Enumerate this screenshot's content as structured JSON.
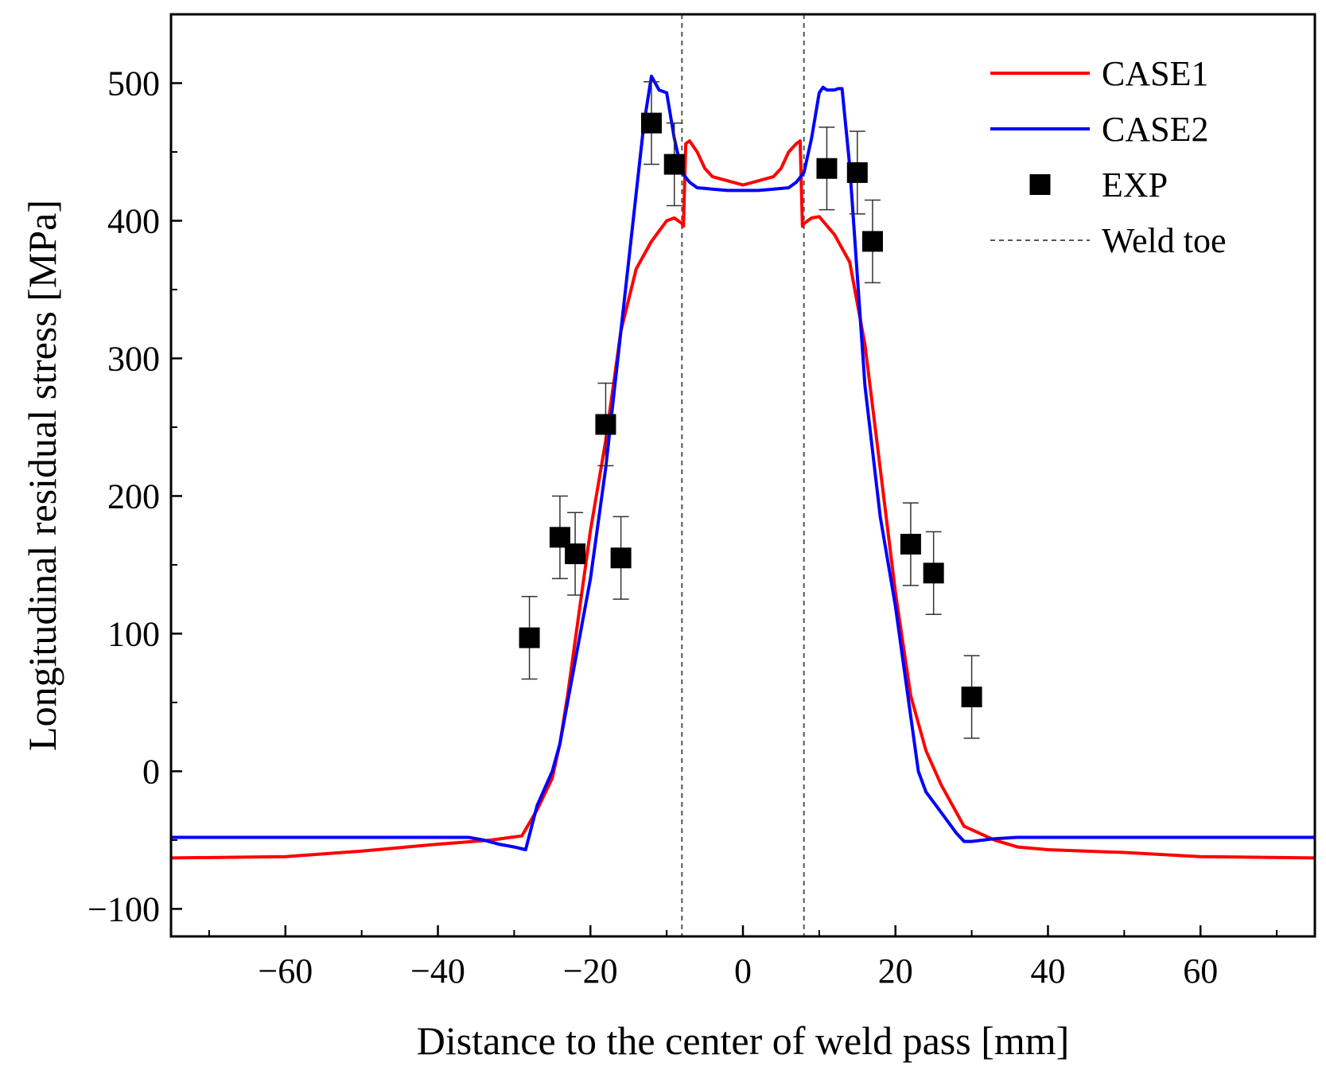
{
  "chart_data": {
    "type": "line",
    "title": "",
    "xlabel": "Distance to the center of weld pass [mm]",
    "ylabel": "Longitudinal residual stress [MPa]",
    "xlim": [
      -75,
      75
    ],
    "ylim": [
      -120,
      550
    ],
    "xticks": [
      -60,
      -40,
      -20,
      0,
      20,
      40,
      60
    ],
    "xtick_labels": [
      "−60",
      "−40",
      "−20",
      "0",
      "20",
      "40",
      "60"
    ],
    "xminor": [
      -70,
      -50,
      -30,
      -10,
      10,
      30,
      50,
      70
    ],
    "yticks": [
      -100,
      0,
      100,
      200,
      300,
      400,
      500
    ],
    "ytick_labels": [
      "−100",
      "0",
      "100",
      "200",
      "300",
      "400",
      "500"
    ],
    "yminor": [
      -50,
      50,
      150,
      250,
      350,
      450
    ],
    "grid": false,
    "legend_position": "top-right",
    "series": [
      {
        "name": "CASE1",
        "kind": "line",
        "color": "#ff0000",
        "x": [
          -75,
          -60,
          -50,
          -40,
          -33,
          -29,
          -27,
          -25,
          -24,
          -23,
          -22,
          -20,
          -18,
          -16,
          -14,
          -12,
          -10,
          -9,
          -8,
          -7.8,
          -7.5,
          -7,
          -6,
          -5,
          -4,
          -2,
          0,
          2,
          4,
          5,
          6,
          7,
          7.5,
          7.8,
          8,
          9,
          10,
          12,
          14,
          16,
          18,
          20,
          22,
          24,
          26,
          29,
          33,
          36,
          40,
          50,
          60,
          75
        ],
        "y": [
          -63,
          -62,
          -58,
          -53,
          -50,
          -47,
          -28,
          -5,
          20,
          55,
          95,
          175,
          240,
          320,
          365,
          385,
          400,
          402,
          398,
          396,
          456,
          458,
          450,
          438,
          432,
          429,
          426,
          429,
          432,
          438,
          450,
          456,
          458,
          396,
          398,
          402,
          403,
          390,
          370,
          310,
          220,
          130,
          55,
          15,
          -10,
          -40,
          -50,
          -55,
          -57,
          -59,
          -62,
          -63
        ]
      },
      {
        "name": "CASE2",
        "kind": "line",
        "color": "#0000ff",
        "x": [
          -75,
          -36,
          -34,
          -32,
          -30,
          -28.5,
          -27,
          -25,
          -24,
          -23,
          -22,
          -20,
          -18,
          -16,
          -14,
          -13,
          -12,
          -11.5,
          -11,
          -10,
          -9,
          -8,
          -7,
          -6,
          -4,
          -2,
          0,
          2,
          4,
          6,
          7,
          8,
          9,
          10,
          10.5,
          11,
          12,
          12.5,
          13,
          14,
          16,
          18,
          20,
          22,
          23,
          24,
          26,
          28,
          29,
          30,
          33,
          36,
          40,
          75
        ],
        "y": [
          -48,
          -48,
          -50,
          -53,
          -55,
          -57,
          -25,
          0,
          20,
          50,
          80,
          140,
          220,
          320,
          420,
          470,
          505,
          500,
          495,
          493,
          460,
          435,
          428,
          424,
          423,
          422,
          422,
          422,
          423,
          424,
          428,
          435,
          460,
          493,
          497,
          495,
          495,
          496,
          496,
          440,
          280,
          185,
          120,
          40,
          0,
          -15,
          -30,
          -45,
          -51,
          -51,
          -49,
          -48,
          -48,
          -48
        ]
      },
      {
        "name": "EXP",
        "kind": "scatter",
        "color": "#000000",
        "x": [
          -28,
          -24,
          -22,
          -18,
          -16,
          -12,
          -9,
          11,
          15,
          17,
          22,
          25,
          30
        ],
        "y": [
          97,
          170,
          158,
          252,
          155,
          471,
          441,
          438,
          435,
          385,
          165,
          144,
          54
        ],
        "error": [
          30,
          30,
          30,
          30,
          30,
          30,
          30,
          30,
          30,
          30,
          30,
          30,
          30
        ]
      },
      {
        "name": "Weld toe",
        "kind": "vline",
        "color": "#555555",
        "x": [
          -8,
          8
        ]
      }
    ]
  }
}
